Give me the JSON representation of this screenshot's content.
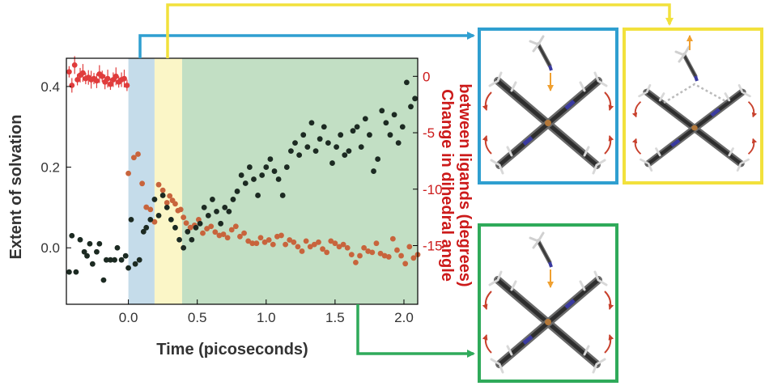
{
  "chart_data": {
    "type": "scatter",
    "xlabel": "Time (picoseconds)",
    "ylabel_left": "Extent of solvation",
    "ylabel_right": "Change in dihedral angle between ligands (degrees)",
    "ylabel_right_lines": [
      "Change in dihedral angle",
      "between ligands (degrees)"
    ],
    "xlim": [
      -0.45,
      2.1
    ],
    "ylim_left": [
      -0.14,
      0.47
    ],
    "ylim_right": [
      -20.2,
      1.6
    ],
    "x_ticks": [
      0.0,
      0.5,
      1.0,
      1.5,
      2.0
    ],
    "x_tick_labels": [
      "0.0",
      "0.5",
      "1.0",
      "1.5",
      "2.0"
    ],
    "y_left_ticks": [
      0.0,
      0.2,
      0.4
    ],
    "y_left_tick_labels": [
      "0.0",
      "0.2",
      "0.4"
    ],
    "y_right_ticks": [
      0,
      -5,
      -10,
      -15
    ],
    "y_right_tick_labels": [
      "0",
      "-5",
      "-10",
      "-15"
    ],
    "grid": false,
    "phases": [
      {
        "phase": "blue",
        "x_start": 0.0,
        "x_end": 0.19,
        "color": "#c5dcea"
      },
      {
        "phase": "yellow",
        "x_start": 0.19,
        "x_end": 0.39,
        "color": "#fbf6c7"
      },
      {
        "phase": "green",
        "x_start": 0.39,
        "x_end": 2.1,
        "color": "#c2dfc4"
      }
    ],
    "series": [
      {
        "color": "#e03c3c",
        "axis": "right",
        "error_bars": true,
        "points": [
          [
            -0.43,
            0.4
          ],
          [
            -0.41,
            -0.8
          ],
          [
            -0.39,
            1.0
          ],
          [
            -0.37,
            -0.3
          ],
          [
            -0.35,
            0.1
          ],
          [
            -0.33,
            0.3
          ],
          [
            -0.31,
            -0.2
          ],
          [
            -0.29,
            -0.1
          ],
          [
            -0.27,
            -0.3
          ],
          [
            -0.25,
            -0.2
          ],
          [
            -0.23,
            -0.4
          ],
          [
            -0.21,
            0.2
          ],
          [
            -0.19,
            0.0
          ],
          [
            -0.17,
            -0.5
          ],
          [
            -0.15,
            -0.2
          ],
          [
            -0.13,
            -0.7
          ],
          [
            -0.11,
            -0.3
          ],
          [
            -0.09,
            0.0
          ],
          [
            -0.07,
            -0.5
          ],
          [
            -0.05,
            -0.3
          ],
          [
            -0.03,
            -0.2
          ],
          [
            -0.01,
            -0.8
          ]
        ]
      },
      {
        "color": "#c8643c",
        "axis": "right",
        "error_bars": false,
        "points": [
          [
            0.0,
            -8.6
          ],
          [
            0.04,
            -7.2
          ],
          [
            0.07,
            -6.9
          ],
          [
            0.1,
            -9.5
          ],
          [
            0.13,
            -11.6
          ],
          [
            0.16,
            -11.8
          ],
          [
            0.19,
            -12.9
          ],
          [
            0.22,
            -9.6
          ],
          [
            0.25,
            -10.1
          ],
          [
            0.28,
            -11.2
          ],
          [
            0.3,
            -10.6
          ],
          [
            0.32,
            -11.0
          ],
          [
            0.34,
            -11.3
          ],
          [
            0.36,
            -11.9
          ],
          [
            0.38,
            -11.8
          ],
          [
            0.4,
            -12.5
          ],
          [
            0.42,
            -13.0
          ],
          [
            0.45,
            -13.4
          ],
          [
            0.48,
            -13.2
          ],
          [
            0.51,
            -12.7
          ],
          [
            0.54,
            -13.9
          ],
          [
            0.57,
            -13.5
          ],
          [
            0.6,
            -13.3
          ],
          [
            0.63,
            -13.8
          ],
          [
            0.66,
            -14.1
          ],
          [
            0.69,
            -14.0
          ],
          [
            0.72,
            -14.3
          ],
          [
            0.75,
            -13.6
          ],
          [
            0.78,
            -13.3
          ],
          [
            0.81,
            -14.2
          ],
          [
            0.84,
            -13.9
          ],
          [
            0.87,
            -14.6
          ],
          [
            0.9,
            -14.8
          ],
          [
            0.93,
            -14.8
          ],
          [
            0.96,
            -14.3
          ],
          [
            0.99,
            -14.7
          ],
          [
            1.02,
            -14.5
          ],
          [
            1.05,
            -14.9
          ],
          [
            1.08,
            -14.2
          ],
          [
            1.11,
            -14.1
          ],
          [
            1.14,
            -14.9
          ],
          [
            1.17,
            -14.5
          ],
          [
            1.2,
            -14.7
          ],
          [
            1.23,
            -15.1
          ],
          [
            1.26,
            -15.5
          ],
          [
            1.29,
            -14.6
          ],
          [
            1.32,
            -15.1
          ],
          [
            1.35,
            -14.9
          ],
          [
            1.38,
            -14.7
          ],
          [
            1.41,
            -15.3
          ],
          [
            1.44,
            -15.6
          ],
          [
            1.47,
            -14.6
          ],
          [
            1.5,
            -14.8
          ],
          [
            1.53,
            -15.1
          ],
          [
            1.56,
            -14.9
          ],
          [
            1.59,
            -15.2
          ],
          [
            1.62,
            -15.8
          ],
          [
            1.65,
            -16.5
          ],
          [
            1.68,
            -15.9
          ],
          [
            1.71,
            -15.2
          ],
          [
            1.74,
            -15.5
          ],
          [
            1.77,
            -15.6
          ],
          [
            1.8,
            -14.8
          ],
          [
            1.83,
            -15.7
          ],
          [
            1.86,
            -15.9
          ],
          [
            1.89,
            -16.0
          ],
          [
            1.92,
            -14.4
          ],
          [
            1.95,
            -15.4
          ],
          [
            1.98,
            -15.9
          ],
          [
            2.01,
            -16.6
          ],
          [
            2.04,
            -15.1
          ],
          [
            2.07,
            -16.1
          ],
          [
            2.1,
            -15.8
          ]
        ]
      },
      {
        "color": "#1c2a22",
        "axis": "left",
        "error_bars": false,
        "points": [
          [
            -0.43,
            -0.06
          ],
          [
            -0.41,
            0.03
          ],
          [
            -0.38,
            -0.06
          ],
          [
            -0.35,
            0.02
          ],
          [
            -0.32,
            -0.01
          ],
          [
            -0.3,
            -0.02
          ],
          [
            -0.28,
            0.01
          ],
          [
            -0.26,
            -0.04
          ],
          [
            -0.23,
            -0.01
          ],
          [
            -0.21,
            0.01
          ],
          [
            -0.18,
            -0.08
          ],
          [
            -0.16,
            -0.03
          ],
          [
            -0.13,
            -0.03
          ],
          [
            -0.1,
            -0.03
          ],
          [
            -0.08,
            0.0
          ],
          [
            -0.05,
            -0.03
          ],
          [
            -0.02,
            -0.02
          ],
          [
            0.0,
            -0.05
          ],
          [
            0.02,
            0.07
          ],
          [
            0.05,
            -0.04
          ],
          [
            0.08,
            -0.03
          ],
          [
            0.11,
            0.04
          ],
          [
            0.13,
            0.05
          ],
          [
            0.16,
            0.07
          ],
          [
            0.19,
            0.12
          ],
          [
            0.22,
            0.08
          ],
          [
            0.25,
            0.13
          ],
          [
            0.28,
            0.1
          ],
          [
            0.31,
            0.07
          ],
          [
            0.34,
            0.05
          ],
          [
            0.37,
            0.02
          ],
          [
            0.4,
            0.0
          ],
          [
            0.43,
            0.04
          ],
          [
            0.46,
            0.02
          ],
          [
            0.49,
            0.05
          ],
          [
            0.52,
            0.06
          ],
          [
            0.55,
            0.1
          ],
          [
            0.58,
            0.08
          ],
          [
            0.61,
            0.12
          ],
          [
            0.64,
            0.09
          ],
          [
            0.67,
            0.06
          ],
          [
            0.7,
            0.1
          ],
          [
            0.73,
            0.09
          ],
          [
            0.76,
            0.12
          ],
          [
            0.79,
            0.14
          ],
          [
            0.82,
            0.18
          ],
          [
            0.85,
            0.16
          ],
          [
            0.88,
            0.2
          ],
          [
            0.91,
            0.17
          ],
          [
            0.94,
            0.13
          ],
          [
            0.97,
            0.18
          ],
          [
            1.0,
            0.2
          ],
          [
            1.03,
            0.22
          ],
          [
            1.06,
            0.19
          ],
          [
            1.09,
            0.17
          ],
          [
            1.12,
            0.13
          ],
          [
            1.15,
            0.2
          ],
          [
            1.18,
            0.24
          ],
          [
            1.21,
            0.26
          ],
          [
            1.24,
            0.23
          ],
          [
            1.27,
            0.28
          ],
          [
            1.3,
            0.25
          ],
          [
            1.33,
            0.31
          ],
          [
            1.36,
            0.24
          ],
          [
            1.39,
            0.27
          ],
          [
            1.42,
            0.3
          ],
          [
            1.45,
            0.26
          ],
          [
            1.48,
            0.21
          ],
          [
            1.51,
            0.25
          ],
          [
            1.54,
            0.28
          ],
          [
            1.57,
            0.23
          ],
          [
            1.6,
            0.24
          ],
          [
            1.63,
            0.29
          ],
          [
            1.66,
            0.3
          ],
          [
            1.69,
            0.25
          ],
          [
            1.72,
            0.32
          ],
          [
            1.75,
            0.28
          ],
          [
            1.78,
            0.19
          ],
          [
            1.81,
            0.22
          ],
          [
            1.84,
            0.34
          ],
          [
            1.87,
            0.31
          ],
          [
            1.9,
            0.28
          ],
          [
            1.93,
            0.33
          ],
          [
            1.96,
            0.26
          ],
          [
            1.99,
            0.3
          ],
          [
            2.02,
            0.41
          ],
          [
            2.05,
            0.35
          ],
          [
            2.08,
            0.37
          ]
        ]
      }
    ]
  },
  "panels": [
    {
      "name": "blue",
      "border_color": "#2f9fd0"
    },
    {
      "name": "yellow",
      "border_color": "#f2e13c"
    },
    {
      "name": "green",
      "border_color": "#2faa5a"
    }
  ]
}
